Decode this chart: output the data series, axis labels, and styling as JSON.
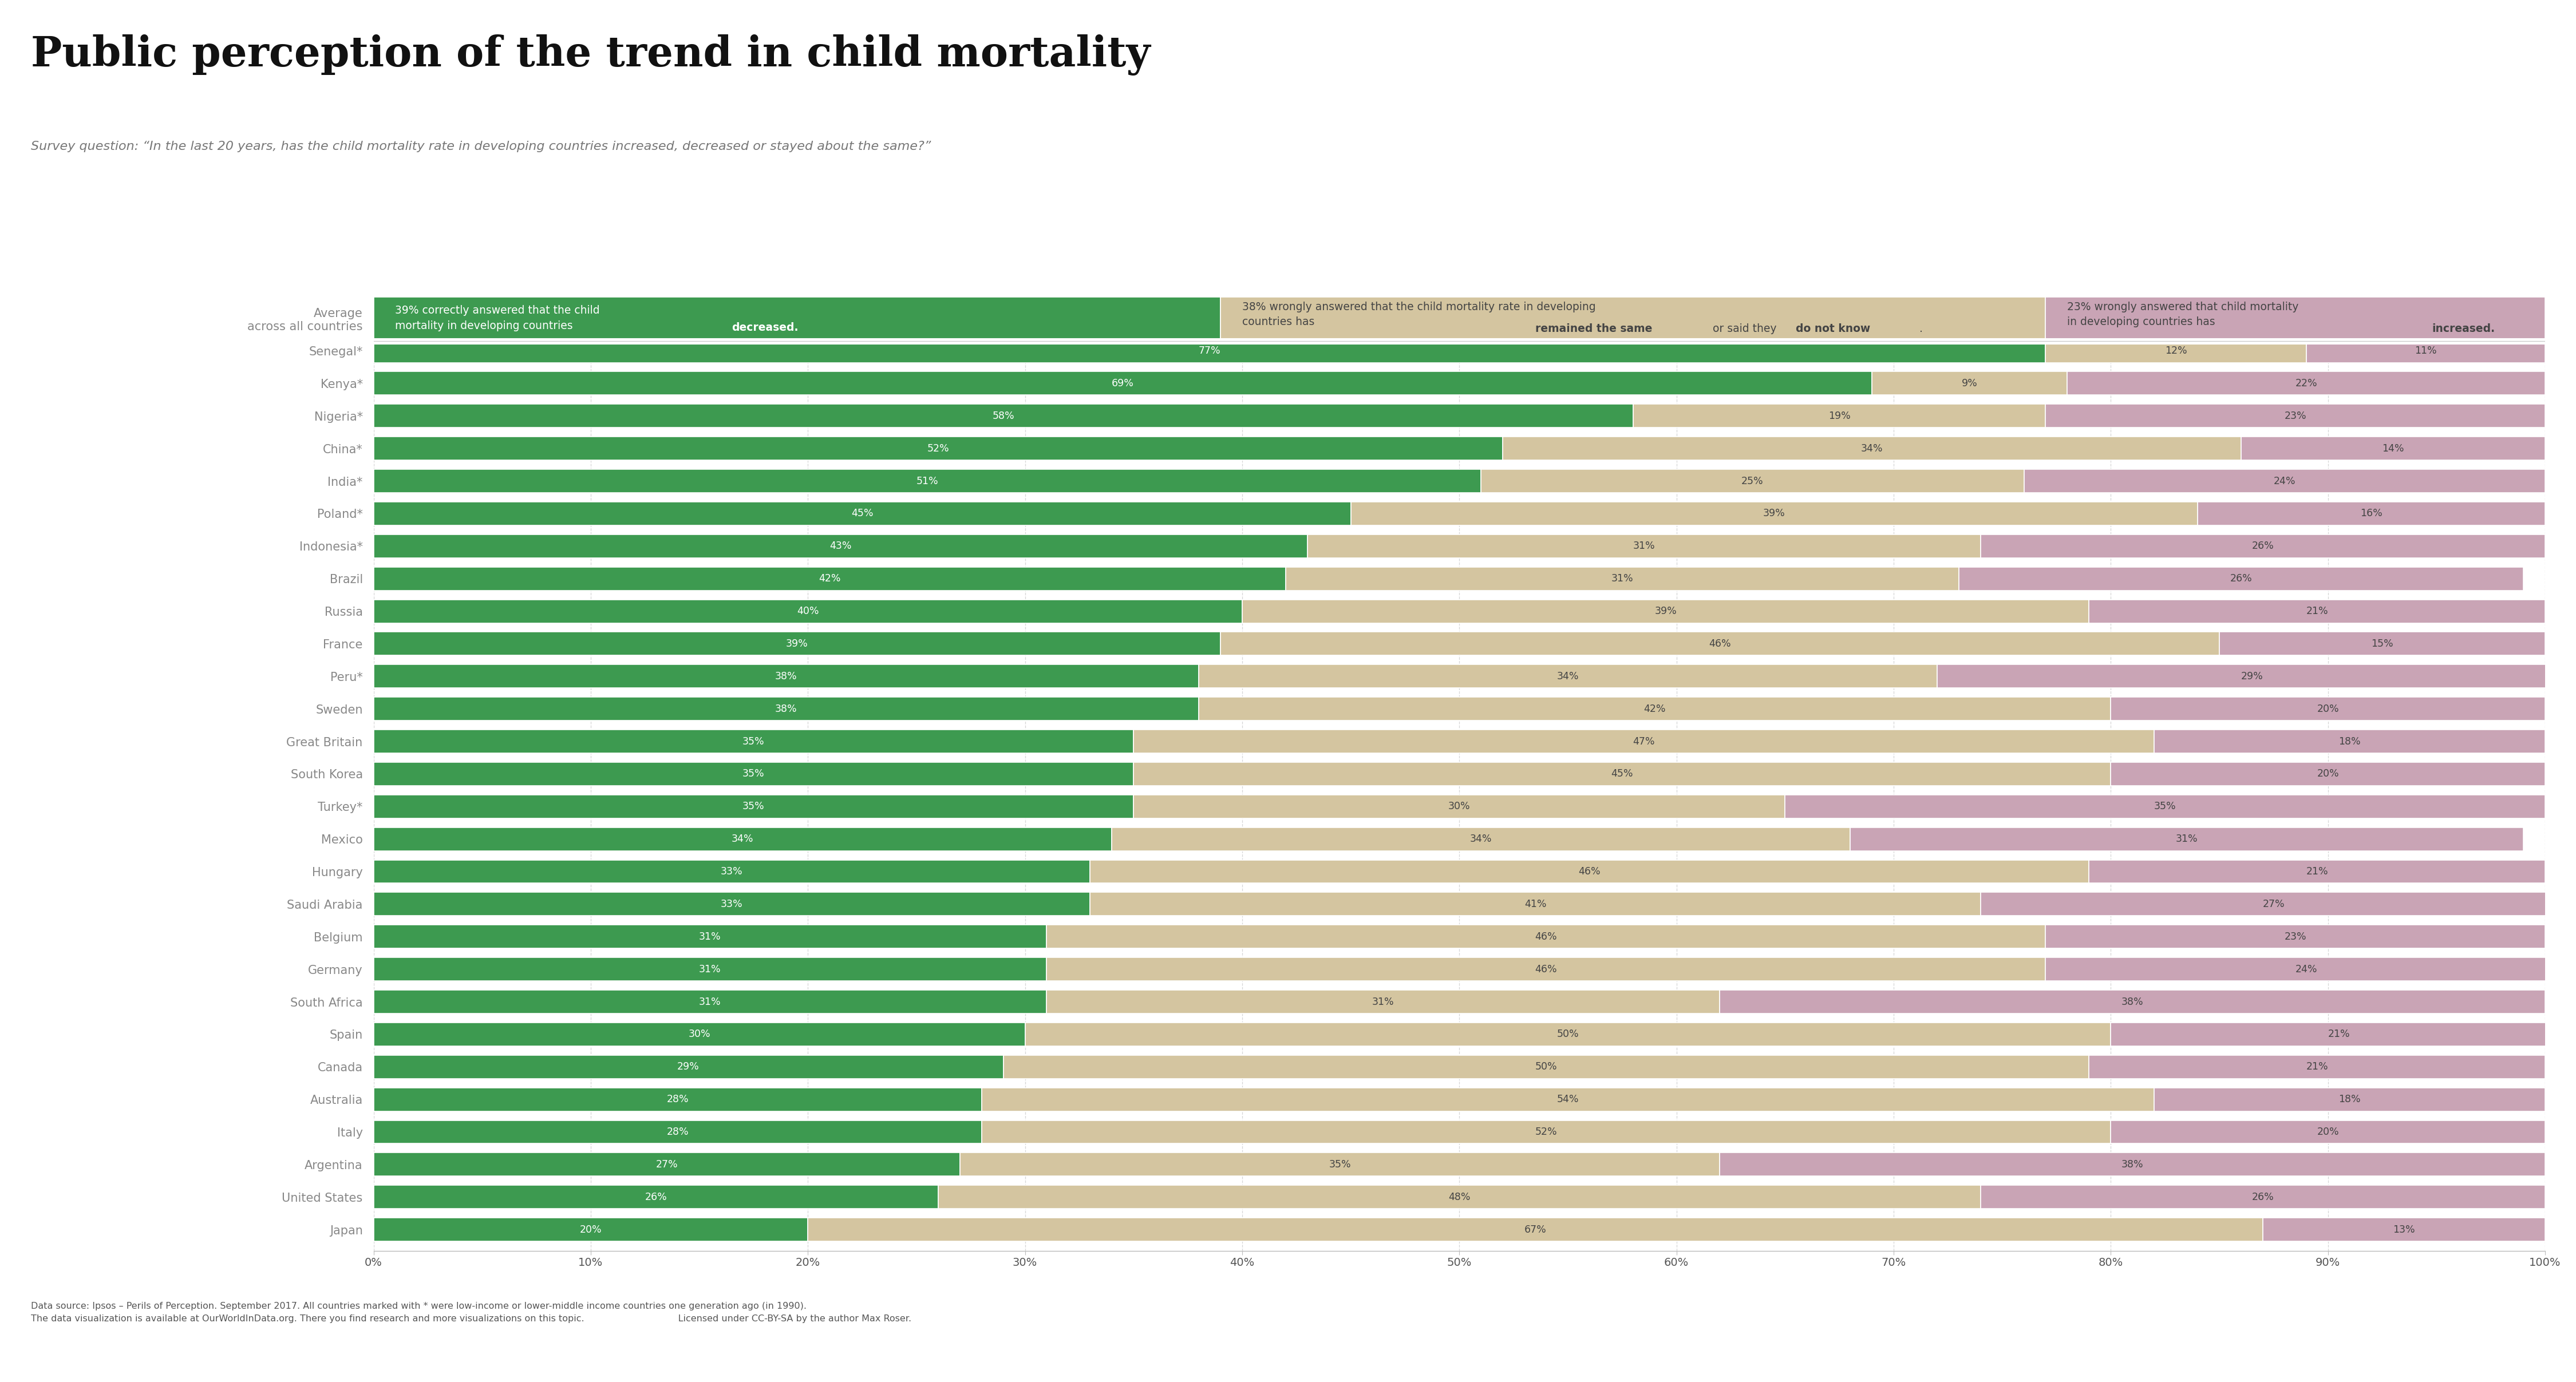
{
  "title": "Public perception of the trend in child mortality",
  "subtitle": "Survey question: “In the last 20 years, has the child mortality rate in developing countries increased, decreased or stayed about the same?”",
  "countries": [
    "Average\nacross all countries",
    "Senegal*",
    "Kenya*",
    "Nigeria*",
    "China*",
    "India*",
    "Poland*",
    "Indonesia*",
    "Brazil",
    "Russia",
    "France",
    "Peru*",
    "Sweden",
    "Great Britain",
    "South Korea",
    "Turkey*",
    "Mexico",
    "Hungary",
    "Saudi Arabia",
    "Belgium",
    "Germany",
    "South Africa",
    "Spain",
    "Canada",
    "Australia",
    "Italy",
    "Argentina",
    "United States",
    "Japan"
  ],
  "decreased": [
    39,
    77,
    69,
    58,
    52,
    51,
    45,
    43,
    42,
    40,
    39,
    38,
    38,
    35,
    35,
    35,
    34,
    33,
    33,
    31,
    31,
    31,
    30,
    29,
    28,
    28,
    27,
    26,
    20
  ],
  "same_or_dk": [
    38,
    12,
    9,
    19,
    34,
    25,
    39,
    31,
    31,
    39,
    46,
    34,
    42,
    47,
    45,
    30,
    34,
    46,
    41,
    46,
    46,
    31,
    50,
    50,
    54,
    52,
    35,
    48,
    67
  ],
  "increased": [
    23,
    11,
    22,
    23,
    14,
    24,
    16,
    26,
    26,
    21,
    15,
    29,
    20,
    18,
    20,
    35,
    31,
    21,
    27,
    23,
    24,
    38,
    21,
    21,
    18,
    20,
    38,
    26,
    13
  ],
  "color_decreased": "#3d9a50",
  "color_same": "#d4c5a0",
  "color_increased": "#c9a4b5",
  "background_color": "#ffffff",
  "logo_bg_top": "#1a2744",
  "logo_bg_bottom": "#e05a2b",
  "bar_height": 0.72,
  "avg_bar_height": 1.3
}
